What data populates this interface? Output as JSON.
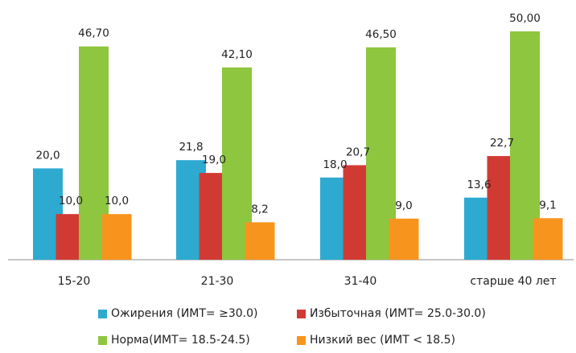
{
  "chart_data": {
    "type": "bar",
    "categories": [
      "15-20",
      "21-30",
      "31-40",
      "старше 40 лет"
    ],
    "series": [
      {
        "name": "Ожирения (ИМТ= ≥30.0)",
        "values": [
          20.0,
          21.8,
          18.0,
          13.6
        ],
        "labels": [
          "20,0",
          "21,8",
          "18,0",
          "13,6"
        ],
        "color": "#2eaad1"
      },
      {
        "name": "Избыточная (ИМТ= 25.0-30.0)",
        "values": [
          10.0,
          19.0,
          20.7,
          22.7
        ],
        "labels": [
          "10,0",
          "19,0",
          "20,7",
          "22,7"
        ],
        "color": "#d13a33"
      },
      {
        "name": "Норма(ИМТ= 18.5-24.5)",
        "values": [
          46.7,
          42.1,
          46.5,
          50.0
        ],
        "labels": [
          "46,70",
          "42,10",
          "46,50",
          "50,00"
        ],
        "color": "#8ec63f"
      },
      {
        "name": "Низкий вес (ИМТ < 18.5)",
        "values": [
          10.0,
          8.2,
          9.0,
          9.1
        ],
        "labels": [
          "10,0",
          "8,2",
          "9,0",
          "9,1"
        ],
        "color": "#f7941d"
      }
    ],
    "ylim": [
      0,
      54
    ],
    "grid": false,
    "legend_position": "bottom"
  }
}
